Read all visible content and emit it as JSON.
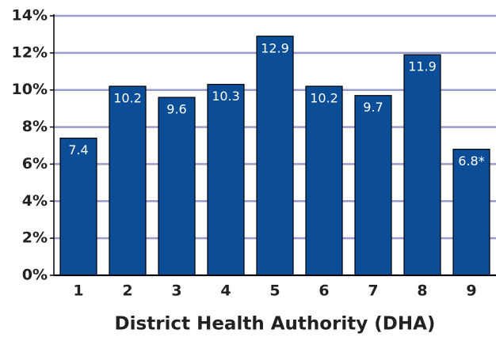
{
  "chart_data": {
    "type": "bar",
    "x_label": "District Health Authority (DHA)",
    "categories": [
      "1",
      "2",
      "3",
      "4",
      "5",
      "6",
      "7",
      "8",
      "9"
    ],
    "values": [
      7.4,
      10.2,
      9.6,
      10.3,
      12.9,
      10.2,
      9.7,
      11.9,
      6.8
    ],
    "value_labels": [
      "7.4",
      "10.2",
      "9.6",
      "10.3",
      "12.9",
      "10.2",
      "9.7",
      "11.9",
      "6.8*"
    ],
    "color": "#0b4d97",
    "ylim": [
      0,
      14
    ],
    "yticks": [
      {
        "value": 0,
        "label": "0%"
      },
      {
        "value": 2,
        "label": "2%"
      },
      {
        "value": 4,
        "label": "4%"
      },
      {
        "value": 6,
        "label": "6%"
      },
      {
        "value": 8,
        "label": "8%"
      },
      {
        "value": 10,
        "label": "10%"
      },
      {
        "value": 12,
        "label": "12%"
      },
      {
        "value": 14,
        "label": "14%"
      }
    ],
    "grid": true
  }
}
